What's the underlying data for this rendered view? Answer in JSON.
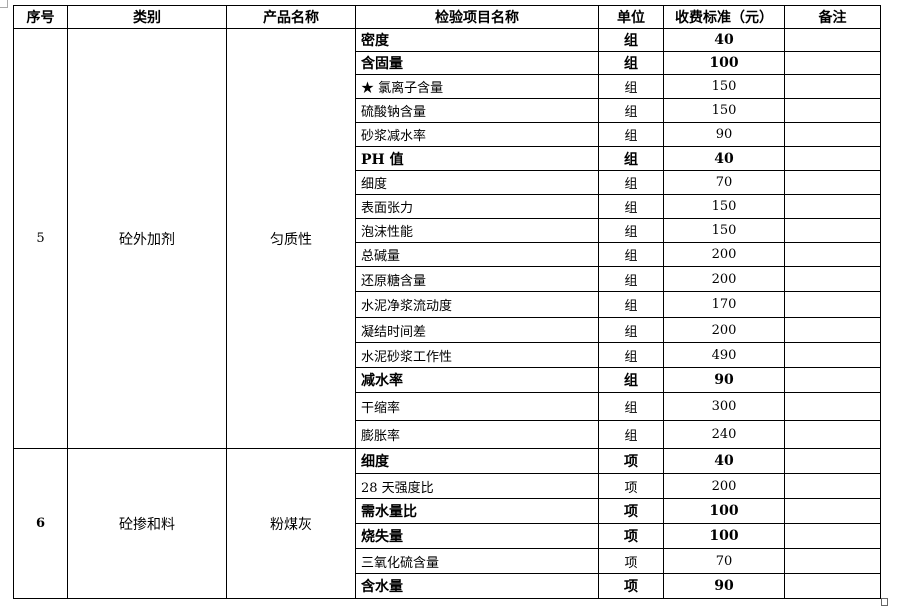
{
  "headers": [
    "序号",
    "类别",
    "产品名称",
    "检验项目名称",
    "单位",
    "收费标准（元）",
    "备注"
  ],
  "groups": [
    {
      "no": "5",
      "category": "砼外加剂",
      "product": "匀质性",
      "no_bold": false,
      "rows": [
        {
          "item": "密度",
          "unit": "组",
          "price": "40",
          "bold": true
        },
        {
          "item": "含固量",
          "unit": "组",
          "price": "100",
          "bold": true
        },
        {
          "item": "★ 氯离子含量",
          "unit": "组",
          "price": "150",
          "bold": false
        },
        {
          "item": "硫酸钠含量",
          "unit": "组",
          "price": "150",
          "bold": false
        },
        {
          "item": "砂浆减水率",
          "unit": "组",
          "price": "90",
          "bold": false
        },
        {
          "item": "PH 值",
          "unit": "组",
          "price": "40",
          "bold": true
        },
        {
          "item": "细度",
          "unit": "组",
          "price": "70",
          "bold": false
        },
        {
          "item": "表面张力",
          "unit": "组",
          "price": "150",
          "bold": false
        },
        {
          "item": "泡沫性能",
          "unit": "组",
          "price": "150",
          "bold": false
        },
        {
          "item": "总碱量",
          "unit": "组",
          "price": "200",
          "bold": false
        },
        {
          "item": "还原糖含量",
          "unit": "组",
          "price": "200",
          "bold": false
        },
        {
          "item": "水泥净浆流动度",
          "unit": "组",
          "price": "170",
          "bold": false
        },
        {
          "item": "凝结时间差",
          "unit": "组",
          "price": "200",
          "bold": false
        },
        {
          "item": "水泥砂浆工作性",
          "unit": "组",
          "price": "490",
          "bold": false
        },
        {
          "item": "减水率",
          "unit": "组",
          "price": "90",
          "bold": true
        },
        {
          "item": "干缩率",
          "unit": "组",
          "price": "300",
          "bold": false
        },
        {
          "item": "膨胀率",
          "unit": "组",
          "price": "240",
          "bold": false
        }
      ]
    },
    {
      "no": "6",
      "category": "砼掺和料",
      "product": "粉煤灰",
      "no_bold": true,
      "rows": [
        {
          "item": "细度",
          "unit": "项",
          "price": "40",
          "bold": true
        },
        {
          "item": "28 天强度比",
          "unit": "项",
          "price": "200",
          "bold": false
        },
        {
          "item": "需水量比",
          "unit": "项",
          "price": "100",
          "bold": true
        },
        {
          "item": "烧失量",
          "unit": "项",
          "price": "100",
          "bold": true
        },
        {
          "item": "三氧化硫含量",
          "unit": "项",
          "price": "70",
          "bold": false
        },
        {
          "item": "含水量",
          "unit": "项",
          "price": "90",
          "bold": true
        }
      ]
    }
  ]
}
